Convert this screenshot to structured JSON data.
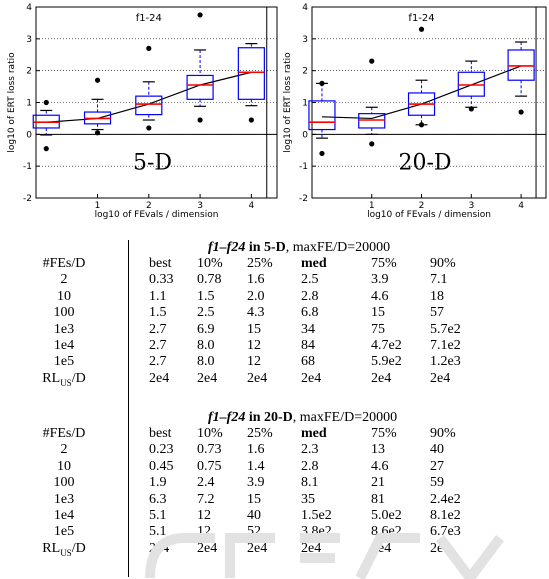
{
  "chart_data": [
    {
      "type": "boxplot",
      "annotation": "f1-24",
      "corner_label": "5-D",
      "xlabel": "log10 of FEvals / dimension",
      "ylabel": "log10 of ERT loss ratio",
      "xlim": [
        -0.2,
        4.5
      ],
      "ylim": [
        -2,
        4
      ],
      "xticks": [
        "1",
        "2",
        "3",
        "4"
      ],
      "yticks": [
        "-2",
        "-1",
        "0",
        "1",
        "2",
        "3",
        "4"
      ],
      "grid": "dotted horizontal",
      "vertical_line_x": 4.3,
      "boxes": [
        {
          "x": 0.0,
          "w_lo": -0.02,
          "q1": 0.2,
          "med": 0.38,
          "q3": 0.6,
          "w_hi": 0.75,
          "outliers": [
            1.0,
            -0.45
          ]
        },
        {
          "x": 1.0,
          "w_lo": 0.15,
          "q1": 0.33,
          "med": 0.5,
          "q3": 0.7,
          "w_hi": 1.1,
          "outliers": [
            1.7,
            0.05
          ]
        },
        {
          "x": 2.0,
          "w_lo": 0.45,
          "q1": 0.62,
          "med": 0.95,
          "q3": 1.2,
          "w_hi": 1.65,
          "outliers": [
            2.7,
            0.2
          ]
        },
        {
          "x": 3.0,
          "w_lo": 0.88,
          "q1": 1.1,
          "med": 1.55,
          "q3": 1.85,
          "w_hi": 2.65,
          "outliers": [
            3.75,
            0.45
          ]
        },
        {
          "x": 4.0,
          "w_lo": 0.9,
          "q1": 1.1,
          "med": 1.95,
          "q3": 2.72,
          "w_hi": 2.85,
          "outliers": [
            0.45
          ]
        }
      ],
      "line": {
        "x": [
          0,
          1,
          2,
          3,
          4
        ],
        "y": [
          0.38,
          0.5,
          0.95,
          1.55,
          1.95
        ]
      }
    },
    {
      "type": "boxplot",
      "annotation": "f1-24",
      "corner_label": "20-D",
      "xlabel": "log10 of FEvals / dimension",
      "ylabel": "log10 of ERT loss ratio",
      "xlim": [
        -0.2,
        4.5
      ],
      "ylim": [
        -2,
        4
      ],
      "xticks": [
        "1",
        "2",
        "3",
        "4"
      ],
      "yticks": [
        "-2",
        "-1",
        "0",
        "1",
        "2",
        "3",
        "4"
      ],
      "grid": "dotted horizontal",
      "vertical_line_x": 4.3,
      "boxes": [
        {
          "x": 0.0,
          "w_lo": -0.12,
          "q1": 0.15,
          "med": 0.38,
          "q3": 1.05,
          "w_hi": 1.6,
          "outliers": [
            1.6,
            -0.6
          ]
        },
        {
          "x": 1.0,
          "w_lo": 0.0,
          "q1": 0.2,
          "med": 0.45,
          "q3": 0.65,
          "w_hi": 0.85,
          "outliers": [
            2.3,
            -0.3
          ]
        },
        {
          "x": 2.0,
          "w_lo": 0.3,
          "q1": 0.6,
          "med": 0.95,
          "q3": 1.3,
          "w_hi": 1.7,
          "outliers": [
            3.3,
            0.3
          ]
        },
        {
          "x": 3.0,
          "w_lo": 0.85,
          "q1": 1.2,
          "med": 1.55,
          "q3": 1.95,
          "w_hi": 2.3,
          "outliers": [
            0.8
          ]
        },
        {
          "x": 4.0,
          "w_lo": 1.2,
          "q1": 1.7,
          "med": 2.15,
          "q3": 2.65,
          "w_hi": 2.9,
          "outliers": [
            0.7
          ]
        }
      ],
      "line": {
        "x": [
          0,
          1,
          2,
          3,
          4
        ],
        "y": [
          0.55,
          0.5,
          0.95,
          1.55,
          2.15
        ]
      }
    },
    {
      "type": "table",
      "title_func": "f1–f24",
      "title_dim": "5-D",
      "title_rest": "maxFE/D=20000",
      "columns": [
        "#FEs/D",
        "best",
        "10%",
        "25%",
        "med",
        "75%",
        "90%"
      ],
      "rows": [
        [
          "2",
          "0.33",
          "0.78",
          "1.6",
          "2.5",
          "3.9",
          "7.1"
        ],
        [
          "10",
          "1.1",
          "1.5",
          "2.0",
          "2.8",
          "4.6",
          "18"
        ],
        [
          "100",
          "1.5",
          "2.5",
          "4.3",
          "6.8",
          "15",
          "57"
        ],
        [
          "1e3",
          "2.7",
          "6.9",
          "15",
          "34",
          "75",
          "5.7e2"
        ],
        [
          "1e4",
          "2.7",
          "8.0",
          "12",
          "84",
          "4.7e2",
          "7.1e2"
        ],
        [
          "1e5",
          "2.7",
          "8.0",
          "12",
          "68",
          "5.9e2",
          "1.2e3"
        ],
        [
          "RL_US/D",
          "2e4",
          "2e4",
          "2e4",
          "2e4",
          "2e4",
          "2e4"
        ]
      ]
    },
    {
      "type": "table",
      "title_func": "f1–f24",
      "title_dim": "20-D",
      "title_rest": "maxFE/D=20000",
      "columns": [
        "#FEs/D",
        "best",
        "10%",
        "25%",
        "med",
        "75%",
        "90%"
      ],
      "rows": [
        [
          "2",
          "0.23",
          "0.73",
          "1.6",
          "2.3",
          "13",
          "40"
        ],
        [
          "10",
          "0.45",
          "0.75",
          "1.4",
          "2.8",
          "4.6",
          "27"
        ],
        [
          "100",
          "1.9",
          "2.4",
          "3.9",
          "8.1",
          "21",
          "59"
        ],
        [
          "1e3",
          "6.3",
          "7.2",
          "15",
          "35",
          "81",
          "2.4e2"
        ],
        [
          "1e4",
          "5.1",
          "12",
          "40",
          "1.5e2",
          "5.0e2",
          "8.1e2"
        ],
        [
          "1e5",
          "5.1",
          "12",
          "52",
          "3.8e2",
          "8.6e2",
          "6.7e3"
        ],
        [
          "RL_US/D",
          "2e4",
          "2e4",
          "2e4",
          "2e4",
          "2e4",
          "2e4"
        ]
      ]
    }
  ],
  "labels": {
    "in_word": "in",
    "max_prefix": ", "
  },
  "colors": {
    "box": "#0000ff",
    "median": "#ff0000",
    "line": "#000000"
  }
}
